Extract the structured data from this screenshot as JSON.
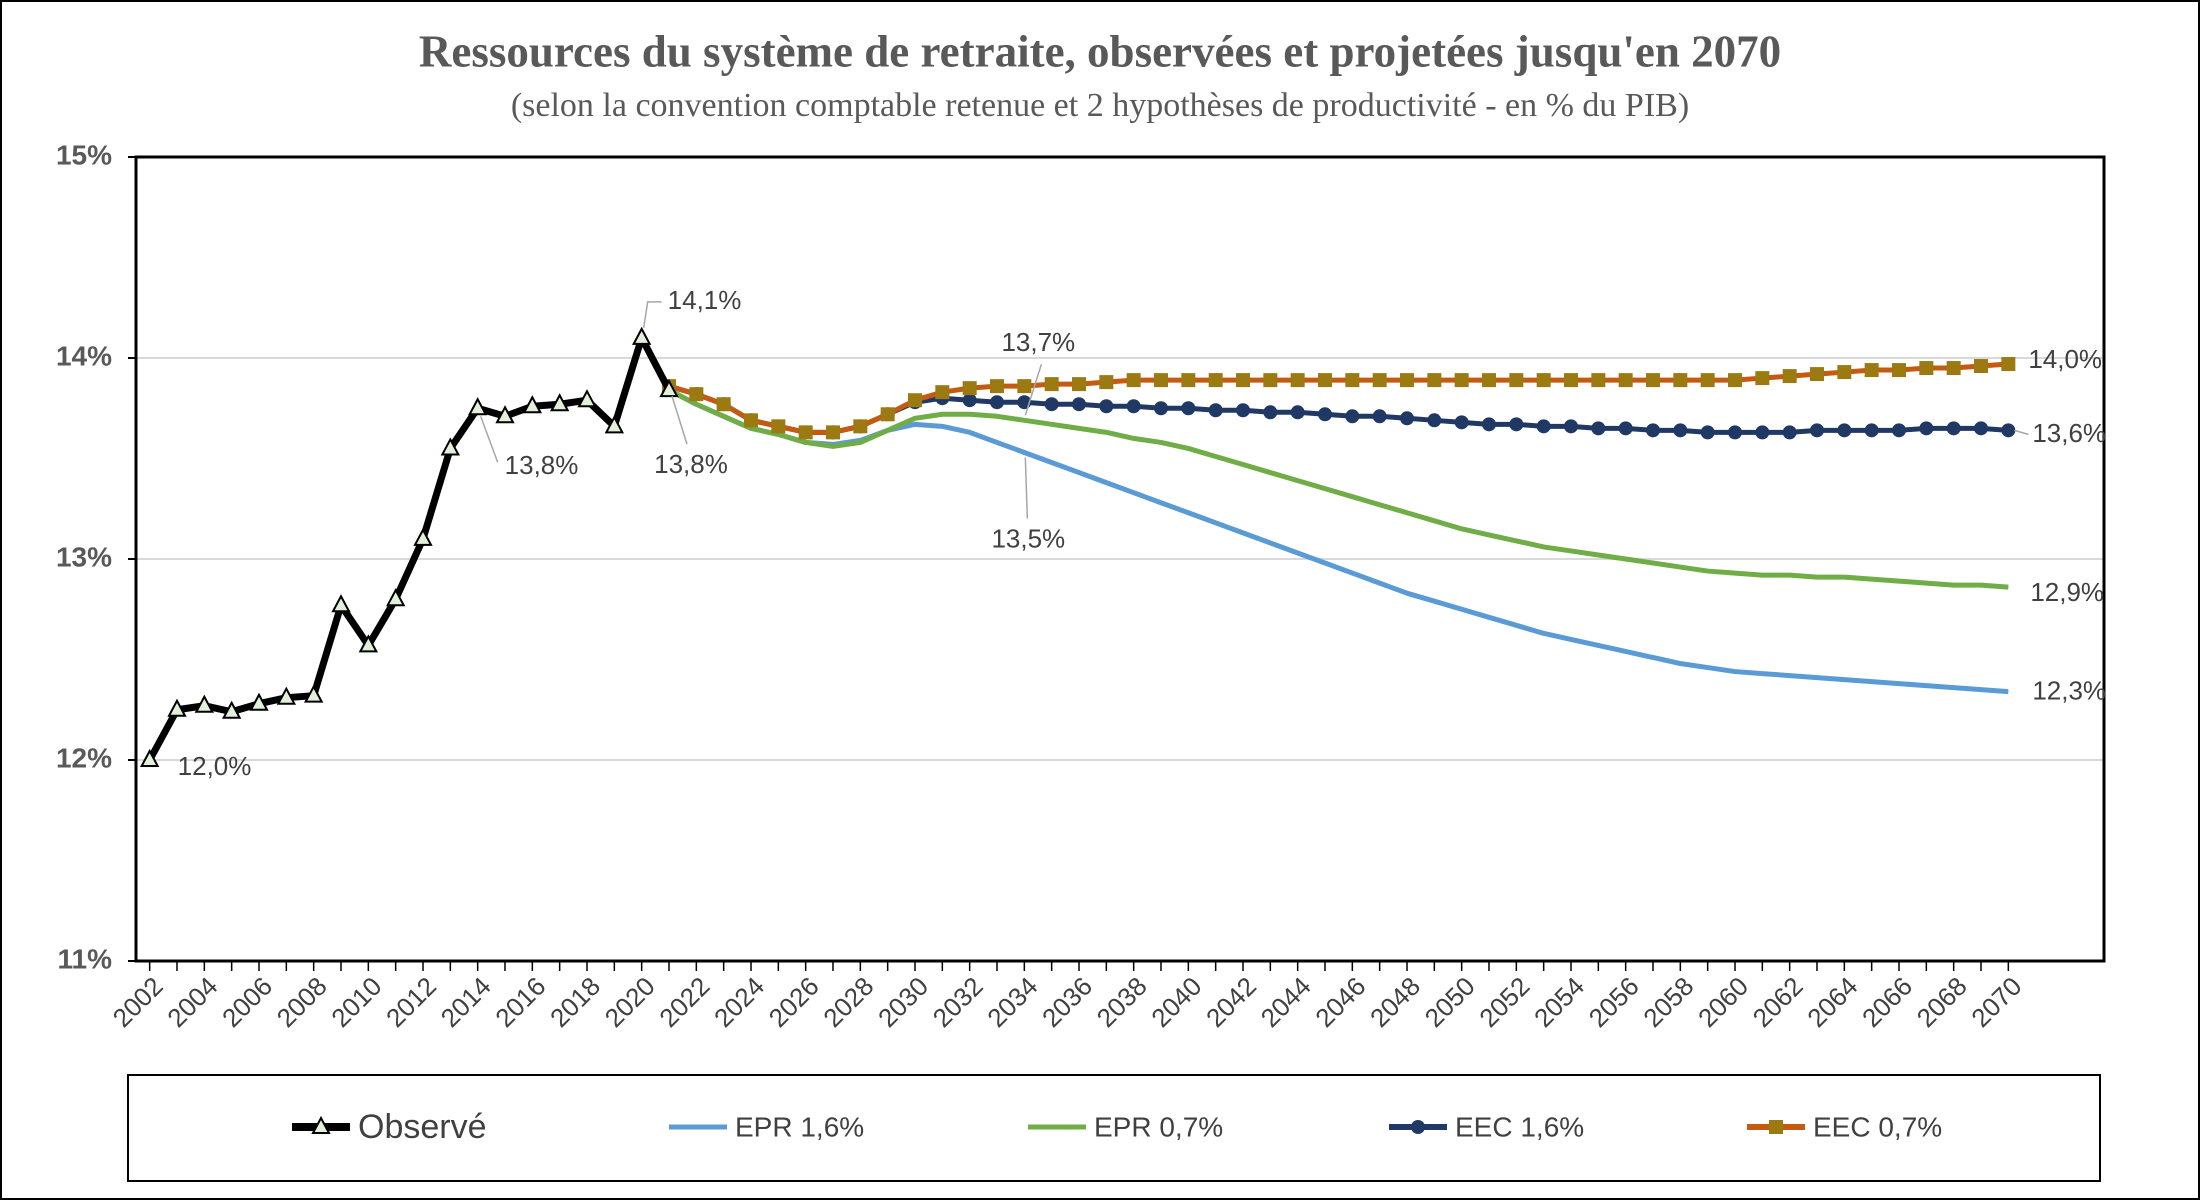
{
  "chart_data": {
    "type": "line",
    "title": "Ressources du système de retraite, observées et projetées jusqu'en 2070",
    "subtitle": "(selon la convention comptable retenue et 2 hypothèses de productivité - en % du PIB)",
    "x": [
      2002,
      2003,
      2004,
      2005,
      2006,
      2007,
      2008,
      2009,
      2010,
      2011,
      2012,
      2013,
      2014,
      2015,
      2016,
      2017,
      2018,
      2019,
      2020,
      2021,
      2022,
      2023,
      2024,
      2025,
      2026,
      2027,
      2028,
      2029,
      2030,
      2031,
      2032,
      2033,
      2034,
      2035,
      2036,
      2037,
      2038,
      2039,
      2040,
      2041,
      2042,
      2043,
      2044,
      2045,
      2046,
      2047,
      2048,
      2049,
      2050,
      2051,
      2052,
      2053,
      2054,
      2055,
      2056,
      2057,
      2058,
      2059,
      2060,
      2061,
      2062,
      2063,
      2064,
      2065,
      2066,
      2067,
      2068,
      2069,
      2070
    ],
    "xlim": [
      2001.5,
      2073.5
    ],
    "xticks": [
      2002,
      2004,
      2006,
      2008,
      2010,
      2012,
      2014,
      2016,
      2018,
      2020,
      2022,
      2024,
      2026,
      2028,
      2030,
      2032,
      2034,
      2036,
      2038,
      2040,
      2042,
      2044,
      2046,
      2048,
      2050,
      2052,
      2054,
      2056,
      2058,
      2060,
      2062,
      2064,
      2066,
      2068,
      2070
    ],
    "ylim": [
      11,
      15
    ],
    "yticks": [
      {
        "value": 11,
        "label": "11%"
      },
      {
        "value": 12,
        "label": "12%"
      },
      {
        "value": 13,
        "label": "13%"
      },
      {
        "value": 14,
        "label": "14%"
      },
      {
        "value": 15,
        "label": "15%"
      }
    ],
    "grid": true,
    "series": [
      {
        "name": "Observé",
        "color": "#000000",
        "marker": "triangle",
        "marker_color": "#e2efd9",
        "values": [
          12.0,
          12.25,
          12.27,
          12.24,
          12.28,
          12.31,
          12.32,
          12.77,
          12.57,
          12.8,
          13.1,
          13.55,
          13.75,
          13.71,
          13.76,
          13.77,
          13.79,
          13.66,
          14.1,
          13.84,
          null,
          null,
          null,
          null,
          null,
          null,
          null,
          null,
          null,
          null,
          null,
          null,
          null,
          null,
          null,
          null,
          null,
          null,
          null,
          null,
          null,
          null,
          null,
          null,
          null,
          null,
          null,
          null,
          null,
          null,
          null,
          null,
          null,
          null,
          null,
          null,
          null,
          null,
          null,
          null,
          null,
          null,
          null,
          null,
          null,
          null,
          null,
          null,
          null
        ],
        "value_labels": [
          "12,0%",
          null,
          null,
          null,
          null,
          null,
          null,
          null,
          null,
          null,
          null,
          null,
          "13,8%",
          null,
          null,
          null,
          null,
          null,
          "14,1%",
          "13,8%",
          null,
          null,
          null,
          null,
          null,
          null,
          null,
          null,
          null,
          null,
          null,
          null,
          null,
          null,
          null,
          null,
          null,
          null,
          null,
          null,
          null,
          null,
          null,
          null,
          null,
          null,
          null,
          null,
          null,
          null,
          null,
          null,
          null,
          null,
          null,
          null,
          null,
          null,
          null,
          null,
          null,
          null,
          null,
          null,
          null,
          null,
          null,
          null,
          null
        ]
      },
      {
        "name": "EPR 1,6%",
        "color": "#5b9bd5",
        "values": [
          null,
          null,
          null,
          null,
          null,
          null,
          null,
          null,
          null,
          null,
          null,
          null,
          null,
          null,
          null,
          null,
          null,
          null,
          null,
          13.84,
          13.77,
          13.71,
          13.65,
          13.62,
          13.58,
          13.57,
          13.59,
          13.64,
          13.67,
          13.66,
          13.63,
          13.58,
          13.53,
          13.48,
          13.43,
          13.38,
          13.33,
          13.28,
          13.23,
          13.18,
          13.13,
          13.08,
          13.03,
          12.98,
          12.93,
          12.88,
          12.83,
          12.79,
          12.75,
          12.71,
          12.67,
          12.63,
          12.6,
          12.57,
          12.54,
          12.51,
          12.48,
          12.46,
          12.44,
          12.43,
          12.42,
          12.41,
          12.4,
          12.39,
          12.38,
          12.37,
          12.36,
          12.35,
          12.34
        ],
        "value_labels": [
          null,
          null,
          null,
          null,
          null,
          null,
          null,
          null,
          null,
          null,
          null,
          null,
          null,
          null,
          null,
          null,
          null,
          null,
          null,
          null,
          null,
          null,
          null,
          null,
          null,
          null,
          null,
          null,
          null,
          null,
          null,
          null,
          "13,5%",
          null,
          null,
          null,
          null,
          null,
          null,
          null,
          null,
          null,
          null,
          null,
          null,
          null,
          null,
          null,
          null,
          null,
          null,
          null,
          null,
          null,
          null,
          null,
          null,
          null,
          null,
          null,
          null,
          null,
          null,
          null,
          null,
          null,
          null,
          null,
          "12,3%"
        ]
      },
      {
        "name": "EPR 0,7%",
        "color": "#70ad47",
        "values": [
          null,
          null,
          null,
          null,
          null,
          null,
          null,
          null,
          null,
          null,
          null,
          null,
          null,
          null,
          null,
          null,
          null,
          null,
          null,
          13.84,
          13.77,
          13.71,
          13.65,
          13.62,
          13.58,
          13.56,
          13.58,
          13.64,
          13.7,
          13.72,
          13.72,
          13.71,
          13.69,
          13.67,
          13.65,
          13.63,
          13.6,
          13.58,
          13.55,
          13.51,
          13.47,
          13.43,
          13.39,
          13.35,
          13.31,
          13.27,
          13.23,
          13.19,
          13.15,
          13.12,
          13.09,
          13.06,
          13.04,
          13.02,
          13.0,
          12.98,
          12.96,
          12.94,
          12.93,
          12.92,
          12.92,
          12.91,
          12.91,
          12.9,
          12.89,
          12.88,
          12.87,
          12.87,
          12.86
        ],
        "value_labels": [
          null,
          null,
          null,
          null,
          null,
          null,
          null,
          null,
          null,
          null,
          null,
          null,
          null,
          null,
          null,
          null,
          null,
          null,
          null,
          null,
          null,
          null,
          null,
          null,
          null,
          null,
          null,
          null,
          null,
          null,
          null,
          null,
          "13,7%",
          null,
          null,
          null,
          null,
          null,
          null,
          null,
          null,
          null,
          null,
          null,
          null,
          null,
          null,
          null,
          null,
          null,
          null,
          null,
          null,
          null,
          null,
          null,
          null,
          null,
          null,
          null,
          null,
          null,
          null,
          null,
          null,
          null,
          null,
          null,
          "12,9%"
        ]
      },
      {
        "name": "EEC 1,6%",
        "color": "#203864",
        "marker": "circle",
        "marker_color": "#203864",
        "values": [
          null,
          null,
          null,
          null,
          null,
          null,
          null,
          null,
          null,
          null,
          null,
          null,
          null,
          null,
          null,
          null,
          null,
          null,
          null,
          13.86,
          13.82,
          13.77,
          13.69,
          13.66,
          13.63,
          13.63,
          13.66,
          13.72,
          13.78,
          13.8,
          13.79,
          13.78,
          13.78,
          13.77,
          13.77,
          13.76,
          13.76,
          13.75,
          13.75,
          13.74,
          13.74,
          13.73,
          13.73,
          13.72,
          13.71,
          13.71,
          13.7,
          13.69,
          13.68,
          13.67,
          13.67,
          13.66,
          13.66,
          13.65,
          13.65,
          13.64,
          13.64,
          13.63,
          13.63,
          13.63,
          13.63,
          13.64,
          13.64,
          13.64,
          13.64,
          13.65,
          13.65,
          13.65,
          13.64
        ],
        "value_labels": [
          null,
          null,
          null,
          null,
          null,
          null,
          null,
          null,
          null,
          null,
          null,
          null,
          null,
          null,
          null,
          null,
          null,
          null,
          null,
          null,
          null,
          null,
          null,
          null,
          null,
          null,
          null,
          null,
          null,
          null,
          null,
          null,
          null,
          null,
          null,
          null,
          null,
          null,
          null,
          null,
          null,
          null,
          null,
          null,
          null,
          null,
          null,
          null,
          null,
          null,
          null,
          null,
          null,
          null,
          null,
          null,
          null,
          null,
          null,
          null,
          null,
          null,
          null,
          null,
          null,
          null,
          null,
          null,
          "13,6%"
        ]
      },
      {
        "name": "EEC 0,7%",
        "color": "#c55a11",
        "marker": "square",
        "marker_color": "#9c7a12",
        "values": [
          null,
          null,
          null,
          null,
          null,
          null,
          null,
          null,
          null,
          null,
          null,
          null,
          null,
          null,
          null,
          null,
          null,
          null,
          null,
          13.86,
          13.82,
          13.77,
          13.69,
          13.66,
          13.63,
          13.63,
          13.66,
          13.72,
          13.79,
          13.83,
          13.85,
          13.86,
          13.86,
          13.87,
          13.87,
          13.88,
          13.89,
          13.89,
          13.89,
          13.89,
          13.89,
          13.89,
          13.89,
          13.89,
          13.89,
          13.89,
          13.89,
          13.89,
          13.89,
          13.89,
          13.89,
          13.89,
          13.89,
          13.89,
          13.89,
          13.89,
          13.89,
          13.89,
          13.89,
          13.9,
          13.91,
          13.92,
          13.93,
          13.94,
          13.94,
          13.95,
          13.95,
          13.96,
          13.97
        ],
        "value_labels": [
          null,
          null,
          null,
          null,
          null,
          null,
          null,
          null,
          null,
          null,
          null,
          null,
          null,
          null,
          null,
          null,
          null,
          null,
          null,
          null,
          null,
          null,
          null,
          null,
          null,
          null,
          null,
          null,
          null,
          null,
          null,
          null,
          null,
          null,
          null,
          null,
          null,
          null,
          null,
          null,
          null,
          null,
          null,
          null,
          null,
          null,
          null,
          null,
          null,
          null,
          null,
          null,
          null,
          null,
          null,
          null,
          null,
          null,
          null,
          null,
          null,
          null,
          null,
          null,
          null,
          null,
          null,
          null,
          "14,0%"
        ]
      }
    ]
  }
}
